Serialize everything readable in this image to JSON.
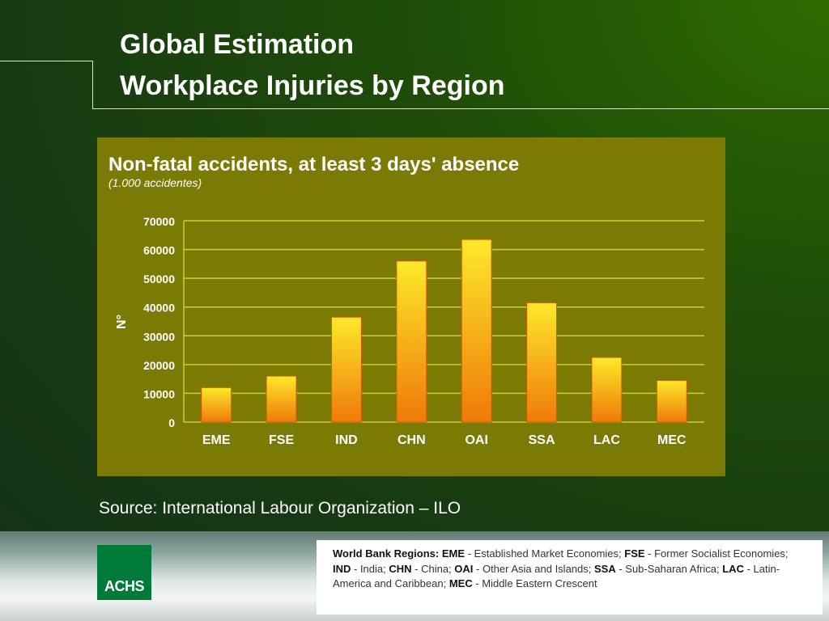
{
  "slide": {
    "title_line1": "Global Estimation",
    "title_line2": "Workplace Injuries by Region",
    "source": "Source: International Labour Organization – ILO",
    "logo_text": "ACHS"
  },
  "regions_note": {
    "heading": "World Bank Regions:",
    "items": [
      {
        "code": "EME",
        "name": "Established Market Economies"
      },
      {
        "code": "FSE",
        "name": "Former Socialist Economies"
      },
      {
        "code": "IND",
        "name": "India"
      },
      {
        "code": "CHN",
        "name": "China"
      },
      {
        "code": "OAI",
        "name": "Other Asia and Islands"
      },
      {
        "code": "SSA",
        "name": "Sub-Saharan Africa"
      },
      {
        "code": "LAC",
        "name": "Latin-America and Caribbean"
      },
      {
        "code": "MEC",
        "name": "Middle Eastern Crescent"
      }
    ]
  },
  "colors": {
    "panel_bg": "#7b7a05",
    "gridline": "#c8d23a",
    "bar_top": "#fde82a",
    "bar_bottom": "#ef7a0a",
    "bar_border": "#c85a00"
  },
  "chart_data": {
    "type": "bar",
    "title": "Non-fatal accidents, at least 3 days' absence",
    "subtitle": "(1.000 accidentes)",
    "ylabel": "N°",
    "xlabel": "",
    "categories": [
      "EME",
      "FSE",
      "IND",
      "CHN",
      "OAI",
      "SSA",
      "LAC",
      "MEC"
    ],
    "values": [
      12000,
      16000,
      36500,
      56000,
      63500,
      41500,
      22500,
      14500
    ],
    "ylim": [
      0,
      70000
    ],
    "yticks": [
      0,
      10000,
      20000,
      30000,
      40000,
      50000,
      60000,
      70000
    ],
    "grid": true
  }
}
